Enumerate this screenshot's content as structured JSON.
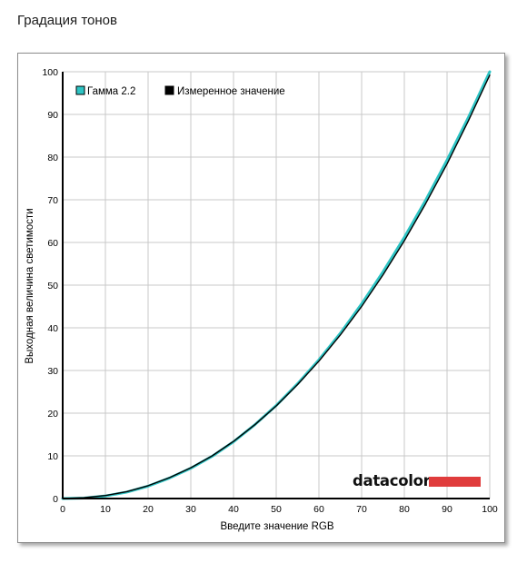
{
  "header": {
    "title": "Градация тонов"
  },
  "brand": {
    "name": "datacolor",
    "bar_color": "#e03c3c"
  },
  "colors": {
    "gamma": "#2ec4c4",
    "measured": "#000000",
    "grid": "#c8c8c8"
  },
  "chart_data": {
    "type": "line",
    "xlabel": "Введите значение RGB",
    "ylabel": "Выходная величина светимости",
    "xlim": [
      0,
      100
    ],
    "ylim": [
      0,
      100
    ],
    "xticks": [
      0,
      10,
      20,
      30,
      40,
      50,
      60,
      70,
      80,
      90,
      100
    ],
    "yticks": [
      0,
      10,
      20,
      30,
      40,
      50,
      60,
      70,
      80,
      90,
      100
    ],
    "grid": true,
    "legend_position": "top-left",
    "series": [
      {
        "name": "Гамма 2.2",
        "color": "#2ec4c4",
        "x": [
          0,
          5,
          10,
          15,
          20,
          25,
          30,
          35,
          40,
          45,
          50,
          55,
          60,
          65,
          70,
          75,
          80,
          85,
          90,
          95,
          100
        ],
        "y": [
          0,
          0.1,
          0.6,
          1.5,
          2.9,
          4.8,
          7.1,
          9.9,
          13.3,
          17.3,
          21.8,
          26.9,
          32.5,
          38.7,
          45.6,
          53.1,
          61.2,
          69.9,
          79.3,
          89.3,
          100
        ]
      },
      {
        "name": "Измеренное значение",
        "color": "#000000",
        "x": [
          0,
          5,
          10,
          15,
          20,
          25,
          30,
          35,
          40,
          45,
          50,
          55,
          60,
          65,
          70,
          75,
          80,
          85,
          90,
          95,
          100
        ],
        "y": [
          0,
          0.2,
          0.7,
          1.6,
          3.0,
          4.9,
          7.2,
          10.0,
          13.4,
          17.3,
          21.7,
          26.7,
          32.2,
          38.3,
          45.0,
          52.4,
          60.4,
          69.1,
          78.4,
          88.5,
          99.2
        ]
      }
    ]
  }
}
